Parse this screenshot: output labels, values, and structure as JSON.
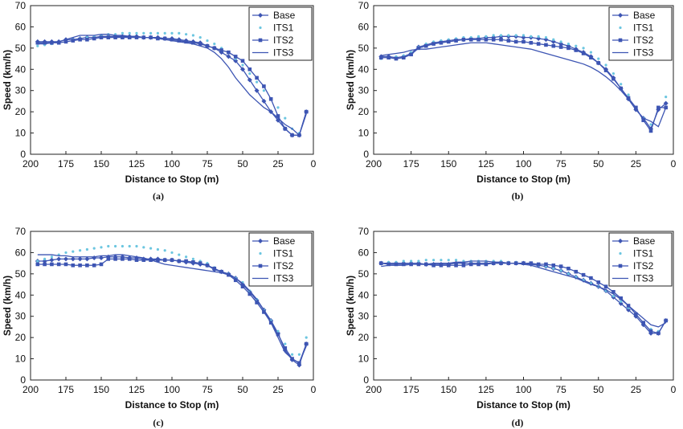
{
  "figure": {
    "colors": {
      "line": "#3d55b3",
      "dotted": "#6cc6e0"
    },
    "marker_styles": {
      "Base": "diamond",
      "ITS1": "dot",
      "ITS2": "square",
      "ITS3": "none"
    }
  },
  "chart_data": [
    {
      "type": "line",
      "caption": "(a)",
      "xlabel": "Distance to Stop (m)",
      "ylabel": "Speed (km/h)",
      "xlim": [
        200,
        0
      ],
      "ylim": [
        0,
        70
      ],
      "xticks": [
        200,
        175,
        150,
        125,
        100,
        75,
        50,
        25,
        0
      ],
      "yticks": [
        0,
        10,
        20,
        30,
        40,
        50,
        60,
        70
      ],
      "x_reversed": true,
      "legend": "top-right",
      "x": [
        195,
        190,
        185,
        180,
        175,
        170,
        165,
        160,
        155,
        150,
        145,
        140,
        135,
        130,
        125,
        120,
        115,
        110,
        105,
        100,
        95,
        90,
        85,
        80,
        75,
        70,
        65,
        60,
        55,
        50,
        45,
        40,
        35,
        30,
        25,
        20,
        15,
        10,
        5
      ],
      "series": [
        {
          "name": "Base",
          "values": [
            53,
            53,
            53,
            53,
            54,
            54,
            54.5,
            55,
            55,
            55.5,
            55.5,
            55.5,
            55.5,
            55.5,
            55.5,
            55,
            55,
            55,
            54.5,
            54.5,
            54,
            53.5,
            53,
            52.5,
            51,
            50,
            48,
            46,
            44,
            40,
            35,
            30,
            25,
            20,
            16,
            12,
            9,
            9,
            20
          ]
        },
        {
          "name": "ITS1",
          "values": [
            51,
            51.5,
            52,
            52.5,
            53,
            54,
            54.5,
            55,
            55.5,
            56,
            56.5,
            56.5,
            57,
            57,
            57,
            57,
            57,
            57,
            57,
            57,
            57,
            56.5,
            56,
            55,
            53.5,
            52,
            50,
            48,
            45,
            42,
            38,
            34,
            30,
            26,
            22,
            17,
            12,
            10,
            20
          ]
        },
        {
          "name": "ITS2",
          "values": [
            52.5,
            52.5,
            52.5,
            52.5,
            53,
            53.5,
            54,
            54,
            54.5,
            55,
            55,
            55,
            55,
            55,
            55,
            55,
            55,
            54.5,
            54.5,
            54,
            53.5,
            53,
            52.5,
            52,
            51,
            50,
            49,
            48,
            46,
            44,
            40,
            36,
            32,
            26,
            18,
            12,
            9,
            9,
            20
          ]
        },
        {
          "name": "ITS3",
          "values": [
            52,
            52,
            52.5,
            53,
            54,
            55,
            56,
            56,
            56,
            56.5,
            56.5,
            56,
            56,
            55.5,
            55.5,
            55,
            55,
            54.5,
            54,
            53.5,
            53,
            52.5,
            52,
            51,
            50,
            48,
            45,
            41,
            36,
            32,
            28,
            25,
            22,
            20,
            17,
            14,
            12,
            9,
            19
          ]
        }
      ]
    },
    {
      "type": "line",
      "caption": "(b)",
      "xlabel": "Distance to Stop (m)",
      "ylabel": "Speed (km/h)",
      "xlim": [
        200,
        0
      ],
      "ylim": [
        0,
        70
      ],
      "xticks": [
        200,
        175,
        150,
        125,
        100,
        75,
        50,
        25,
        0
      ],
      "yticks": [
        0,
        10,
        20,
        30,
        40,
        50,
        60,
        70
      ],
      "x_reversed": true,
      "legend": "top-right",
      "x": [
        195,
        190,
        185,
        180,
        175,
        170,
        165,
        160,
        155,
        150,
        145,
        140,
        135,
        130,
        125,
        120,
        115,
        110,
        105,
        100,
        95,
        90,
        85,
        80,
        75,
        70,
        65,
        60,
        55,
        50,
        45,
        40,
        35,
        30,
        25,
        20,
        15,
        10,
        5
      ],
      "series": [
        {
          "name": "Base",
          "values": [
            46,
            46,
            45.5,
            46,
            47.5,
            50.5,
            51.5,
            52.5,
            53,
            53.5,
            54,
            54,
            54.5,
            54.5,
            55,
            55,
            55.5,
            55.5,
            55.5,
            55,
            55,
            54.5,
            54,
            53,
            52,
            51,
            49.5,
            48,
            46,
            43,
            40,
            36,
            31,
            26,
            21,
            17,
            12,
            21,
            24
          ]
        },
        {
          "name": "ITS1",
          "values": [
            45,
            45.5,
            46,
            46.5,
            48,
            50.5,
            52,
            53,
            53.5,
            54,
            54.5,
            55,
            55,
            55.5,
            55.5,
            56,
            56,
            56,
            56,
            56,
            55.5,
            55.5,
            55,
            54,
            53,
            52,
            51,
            50,
            48,
            45,
            42,
            38,
            33,
            28,
            22,
            17,
            14,
            22,
            27
          ]
        },
        {
          "name": "ITS2",
          "values": [
            45.5,
            45.5,
            45,
            45.5,
            47,
            50,
            51,
            52,
            52.5,
            53,
            53.5,
            54,
            54,
            54,
            54,
            54,
            54,
            53.5,
            53,
            53,
            52.5,
            52,
            51.5,
            51,
            50.5,
            50,
            49,
            47.5,
            45.5,
            43,
            39.5,
            35.5,
            31,
            26.5,
            22,
            16,
            11,
            22,
            22
          ]
        },
        {
          "name": "ITS3",
          "values": [
            46.5,
            47,
            47.5,
            48,
            49,
            49.5,
            49.5,
            50,
            50.5,
            51,
            51.5,
            52,
            52.5,
            52.5,
            52.5,
            52,
            51.5,
            51,
            50.5,
            50,
            49.5,
            48.5,
            47.5,
            46.5,
            45.5,
            44.5,
            43.5,
            42.5,
            41,
            39,
            36.5,
            33.5,
            30,
            26,
            21,
            17,
            15.5,
            13,
            22
          ]
        }
      ]
    },
    {
      "type": "line",
      "caption": "(c)",
      "xlabel": "Distance to Stop (m)",
      "ylabel": "Speed (km/h)",
      "xlim": [
        200,
        0
      ],
      "ylim": [
        0,
        70
      ],
      "xticks": [
        200,
        175,
        150,
        125,
        100,
        75,
        50,
        25,
        0
      ],
      "yticks": [
        0,
        10,
        20,
        30,
        40,
        50,
        60,
        70
      ],
      "x_reversed": true,
      "legend": "top-right",
      "x": [
        195,
        190,
        185,
        180,
        175,
        170,
        165,
        160,
        155,
        150,
        145,
        140,
        135,
        130,
        125,
        120,
        115,
        110,
        105,
        100,
        95,
        90,
        85,
        80,
        75,
        70,
        65,
        60,
        55,
        50,
        45,
        40,
        35,
        30,
        25,
        20,
        15,
        10,
        5
      ],
      "series": [
        {
          "name": "Base",
          "values": [
            56,
            56,
            56.5,
            57,
            57,
            57,
            57,
            57,
            57.5,
            57.5,
            58,
            58,
            58,
            57.5,
            57.5,
            57,
            57,
            57,
            56.5,
            56.5,
            56,
            55.5,
            55,
            54.5,
            54,
            52,
            51,
            50,
            48,
            45,
            41.5,
            37.5,
            33,
            28,
            22,
            14,
            9.5,
            7,
            17
          ]
        },
        {
          "name": "ITS1",
          "values": [
            56,
            57,
            58,
            59,
            60,
            60.5,
            61,
            61.5,
            62,
            62.5,
            63,
            63,
            63,
            63,
            63,
            62.5,
            62,
            61.5,
            61,
            60,
            59,
            58,
            57,
            56,
            55,
            53,
            51,
            50,
            48,
            46,
            42,
            38,
            33,
            28,
            23,
            17,
            12,
            12,
            20
          ]
        },
        {
          "name": "ITS2",
          "values": [
            54.5,
            54.5,
            54.5,
            54.5,
            54.5,
            54,
            54,
            54,
            54,
            54.5,
            57,
            57,
            57,
            57,
            56.5,
            56.5,
            56.5,
            56.5,
            56.5,
            56.5,
            56,
            56,
            55.5,
            55,
            54,
            52.5,
            51,
            49.5,
            47,
            44,
            40.5,
            36.5,
            32,
            27,
            21.5,
            15,
            10,
            8,
            17
          ]
        },
        {
          "name": "ITS3",
          "values": [
            59,
            59,
            59,
            58.5,
            58.5,
            58,
            58,
            58,
            58,
            58.5,
            58.5,
            59,
            59,
            58.5,
            58,
            57.5,
            56.5,
            55.5,
            54.5,
            54,
            53.5,
            53,
            52.5,
            52,
            51.5,
            51,
            50.5,
            49.5,
            48,
            45.5,
            42,
            38,
            33,
            27,
            20,
            13,
            10,
            8,
            16
          ]
        }
      ]
    },
    {
      "type": "line",
      "caption": "(d)",
      "xlabel": "Distance to Stop (m)",
      "ylabel": "Speed (km/h)",
      "xlim": [
        200,
        0
      ],
      "ylim": [
        0,
        70
      ],
      "xticks": [
        200,
        175,
        150,
        125,
        100,
        75,
        50,
        25,
        0
      ],
      "yticks": [
        0,
        10,
        20,
        30,
        40,
        50,
        60,
        70
      ],
      "x_reversed": true,
      "legend": "top-right",
      "x": [
        195,
        190,
        185,
        180,
        175,
        170,
        165,
        160,
        155,
        150,
        145,
        140,
        135,
        130,
        125,
        120,
        115,
        110,
        105,
        100,
        95,
        90,
        85,
        80,
        75,
        70,
        65,
        60,
        55,
        50,
        45,
        40,
        35,
        30,
        25,
        20,
        15,
        10,
        5
      ],
      "series": [
        {
          "name": "Base",
          "values": [
            55,
            55,
            55,
            55,
            55,
            55,
            54.5,
            54.5,
            54.5,
            54.5,
            55,
            55,
            55,
            55,
            55,
            55,
            55,
            55,
            55,
            55,
            54.5,
            54,
            53.5,
            52.5,
            51.5,
            50,
            48.5,
            47,
            45.5,
            44,
            42,
            39,
            36,
            33,
            30,
            26,
            22,
            22,
            28
          ]
        },
        {
          "name": "ITS1",
          "values": [
            55,
            55.5,
            55.5,
            56,
            56,
            56,
            56.5,
            56.5,
            56.5,
            56.5,
            56.5,
            56,
            56,
            56,
            56,
            56,
            56,
            55.5,
            55.5,
            55,
            54.5,
            54,
            53.5,
            52.5,
            51.5,
            50,
            48.5,
            47,
            45.5,
            44,
            42,
            39.5,
            37,
            34,
            31,
            27,
            24,
            23,
            28
          ]
        },
        {
          "name": "ITS2",
          "values": [
            55,
            54.5,
            54.5,
            54.5,
            54.5,
            54.5,
            54.5,
            54,
            54,
            54,
            54,
            54,
            54.5,
            54.5,
            54.5,
            55,
            55,
            55,
            55,
            55,
            55,
            54.5,
            54.5,
            54,
            53.5,
            52.5,
            51,
            49.5,
            48,
            46,
            44,
            41.5,
            38.5,
            35,
            31,
            27,
            23,
            22,
            28
          ]
        },
        {
          "name": "ITS3",
          "values": [
            53.5,
            54,
            54,
            54,
            54.5,
            54.5,
            54.5,
            55,
            55,
            55,
            55.5,
            55.5,
            56,
            56,
            56,
            55.5,
            55.5,
            55,
            55,
            54.5,
            54,
            53,
            52,
            51,
            50,
            49,
            48,
            46.5,
            45,
            44,
            42.5,
            40.5,
            38,
            35,
            32,
            29,
            26,
            25,
            27
          ]
        }
      ]
    }
  ]
}
